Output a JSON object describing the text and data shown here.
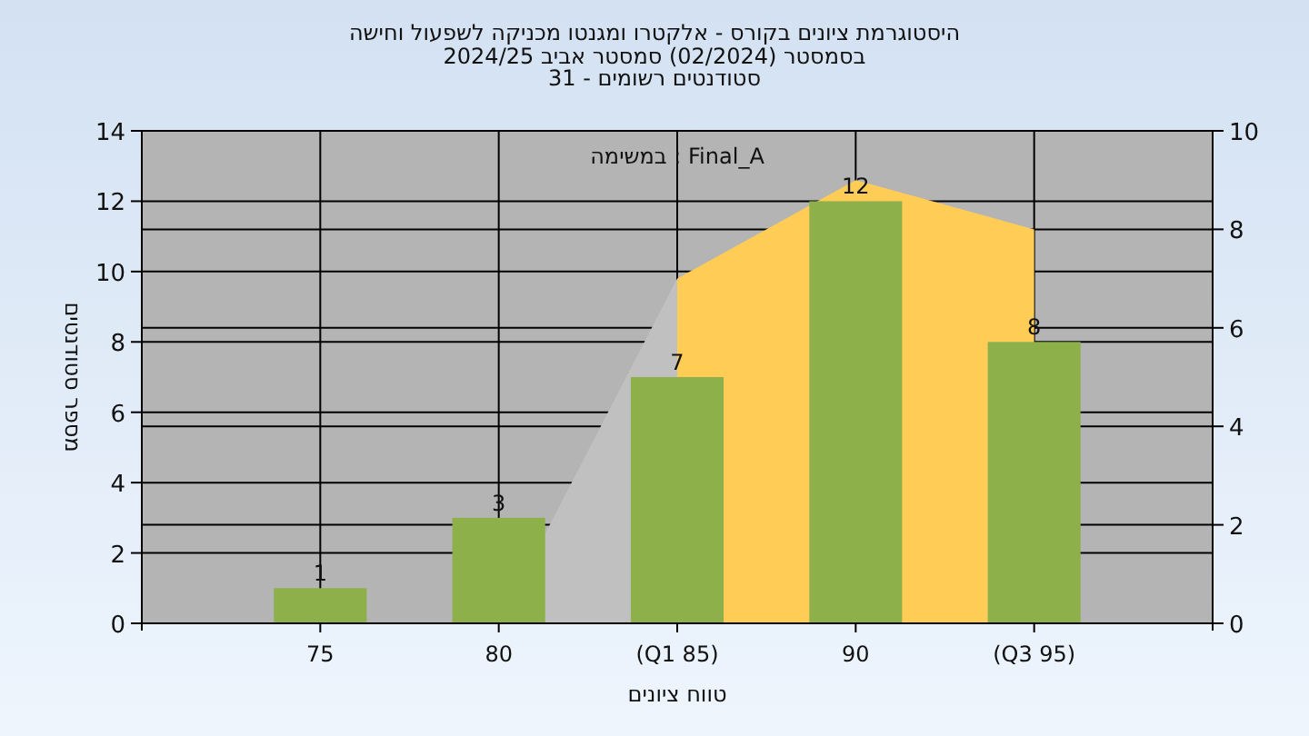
{
  "chart_data": {
    "type": "bar",
    "title": "היסטוגרמת ציונים בקורס - אלקטרו ומגנטו מכניקה לשפעול וחישה",
    "subtitle": "בסמסטר (02/2024) סמסטר אביב 2024/25\nסטודנטים רשומים - 31",
    "xlabel": "טווח ציונים",
    "ylabel": "מספר סטודנטים",
    "annotations": [
      "במשימה : Final_A"
    ],
    "categories": [
      "75",
      "80",
      "(Q1 85)",
      "90",
      "(Q3 95)"
    ],
    "series": [
      {
        "type": "area",
        "axis": "y2",
        "color": "#c0c0c0",
        "values": [
          null,
          0,
          7,
          null,
          null
        ]
      },
      {
        "type": "area",
        "axis": "y2",
        "color": "#ffcc55",
        "values": [
          null,
          null,
          7,
          9,
          8
        ]
      },
      {
        "color": "#8db04a",
        "values": [
          1,
          3,
          7,
          12,
          8
        ],
        "value_labels": [
          "1",
          "3",
          "7",
          "12",
          "8"
        ]
      }
    ],
    "ylim": [
      0,
      14
    ],
    "yticks": [
      0,
      2,
      4,
      6,
      8,
      10,
      12,
      14
    ],
    "y2lim": [
      0,
      10
    ],
    "y2ticks": [
      0,
      2,
      4,
      6,
      8,
      10
    ],
    "grid": true
  }
}
